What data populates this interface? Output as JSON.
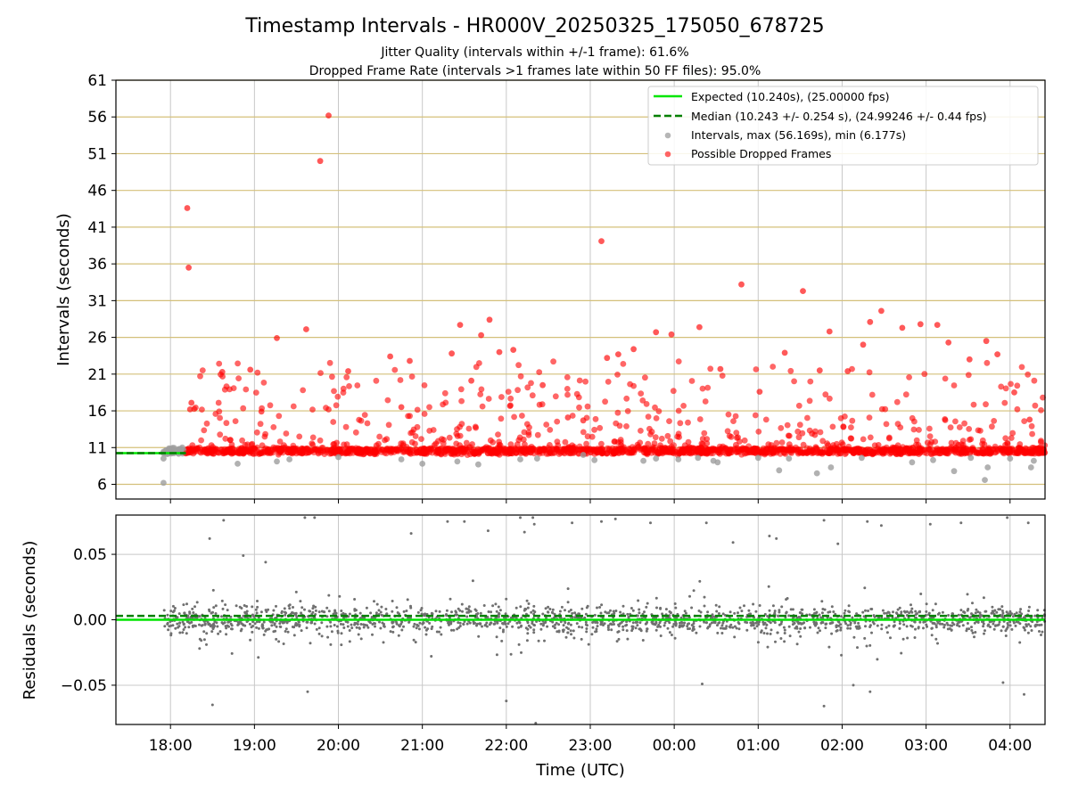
{
  "figure": {
    "title": "Timestamp Intervals - HR000V_20250325_175050_678725",
    "subtitle_1": "Jitter Quality (intervals within +/-1 frame): 61.6%",
    "subtitle_2": "Dropped Frame Rate (intervals >1 frames late within 50 FF files): 95.0%"
  },
  "colors": {
    "expected": "#00e600",
    "median": "#008000",
    "interval": "#9e9e9e",
    "dropped": "#ff0000",
    "residual": "#707070",
    "hgrid_top": "#d4c07a",
    "grid": "#c8c8c8"
  },
  "chart_data": [
    {
      "type": "scatter",
      "panel": "intervals",
      "title": "Timestamp Intervals - HR000V_20250325_175050_678725",
      "xlabel": "Time (UTC)",
      "ylabel": "Intervals (seconds)",
      "ylim": [
        4,
        61
      ],
      "xlim": [
        "17:21",
        "04:25"
      ],
      "x_ticks": [
        "18:00",
        "19:00",
        "20:00",
        "21:00",
        "22:00",
        "23:00",
        "00:00",
        "01:00",
        "02:00",
        "03:00",
        "04:00"
      ],
      "y_ticks": [
        6,
        11,
        16,
        21,
        26,
        31,
        36,
        41,
        46,
        51,
        56,
        61
      ],
      "grid": true,
      "legend_position": "top-right",
      "legend": [
        "Expected (10.240s), (25.00000 fps)",
        "Median (10.243 +/- 0.254 s), (24.99246 +/- 0.44 fps)",
        "Intervals, max (56.169s), min (6.177s)",
        "Possible Dropped Frames"
      ],
      "expected_interval_s": 10.24,
      "median_interval_s": 10.243,
      "series": [
        {
          "name": "Possible Dropped Frames",
          "x": [
            "18:12",
            "18:13",
            "18:14",
            "18:15",
            "18:37",
            "18:57",
            "19:05",
            "19:16",
            "19:37",
            "19:47",
            "19:53",
            "20:07",
            "20:37",
            "20:45",
            "20:51",
            "21:21",
            "21:27",
            "21:35",
            "21:42",
            "21:48",
            "21:55",
            "22:05",
            "22:26",
            "22:44",
            "22:55",
            "23:08",
            "23:12",
            "23:20",
            "23:31",
            "23:47",
            "23:58",
            "00:18",
            "00:33",
            "00:48",
            "01:01",
            "01:19",
            "01:32",
            "01:44",
            "01:51",
            "02:04",
            "02:15",
            "02:20",
            "02:28",
            "02:43",
            "02:56",
            "03:08",
            "03:16",
            "03:31",
            "03:43",
            "03:51",
            "04:03",
            "04:14"
          ],
          "y": [
            43.6,
            35.5,
            16.2,
            17.1,
            21.3,
            21.6,
            15.9,
            25.9,
            27.1,
            50.0,
            56.2,
            21.4,
            23.4,
            16.5,
            22.8,
            23.8,
            27.7,
            20.1,
            26.3,
            28.4,
            24.0,
            24.3,
            19.5,
            15.1,
            14.7,
            39.1,
            23.2,
            23.7,
            24.4,
            26.7,
            26.4,
            27.4,
            21.7,
            33.2,
            18.6,
            23.9,
            32.3,
            21.5,
            26.8,
            21.4,
            25.0,
            28.1,
            29.6,
            27.3,
            27.8,
            27.7,
            25.3,
            23.0,
            25.5,
            23.7,
            18.5,
            14.8
          ]
        },
        {
          "name": "Intervals, max (56.169s), min (6.177s)",
          "x": [
            "17:55",
            "17:55",
            "17:59",
            "18:06",
            "18:48",
            "19:16",
            "19:25",
            "20:00",
            "20:45",
            "21:00",
            "21:25",
            "21:40",
            "22:10",
            "22:22",
            "22:55",
            "23:03",
            "23:38",
            "23:47",
            "00:03",
            "00:17",
            "00:28",
            "00:31",
            "01:00",
            "01:15",
            "01:22",
            "01:42",
            "01:52",
            "02:14",
            "02:50",
            "03:05",
            "03:20",
            "03:32",
            "03:42",
            "03:44",
            "04:00",
            "04:15",
            "04:17"
          ],
          "y": [
            6.2,
            9.5,
            10.9,
            10.8,
            8.8,
            9.1,
            9.4,
            9.7,
            9.4,
            8.8,
            9.1,
            8.7,
            9.4,
            9.5,
            10.0,
            9.3,
            9.2,
            9.5,
            9.4,
            9.6,
            9.2,
            9.0,
            9.6,
            7.9,
            9.5,
            7.5,
            8.3,
            9.6,
            9.0,
            9.3,
            7.8,
            9.6,
            6.6,
            8.3,
            9.5,
            8.3,
            9.2
          ]
        },
        {
          "name": "Expected (10.240s), (25.00000 fps)",
          "x": [
            "17:21",
            "04:25"
          ],
          "y": [
            10.24,
            10.24
          ]
        },
        {
          "name": "Median (10.243 +/- 0.254 s), (24.99246 +/- 0.44 fps)",
          "x": [
            "17:21",
            "04:25"
          ],
          "y": [
            10.243,
            10.243
          ]
        }
      ]
    },
    {
      "type": "scatter",
      "panel": "residuals",
      "xlabel": "Time (UTC)",
      "ylabel": "Residuals (seconds)",
      "ylim": [
        -0.08,
        0.08
      ],
      "y_ticks": [
        -0.05,
        0.0,
        0.05
      ],
      "y_tick_labels": [
        "−0.05",
        "0.00",
        "0.05"
      ],
      "x_ticks": [
        "18:00",
        "19:00",
        "20:00",
        "21:00",
        "22:00",
        "23:00",
        "00:00",
        "01:00",
        "02:00",
        "03:00",
        "04:00"
      ],
      "grid": true,
      "series": [
        {
          "name": "",
          "x": [
            "18:28",
            "18:38",
            "18:52",
            "19:08",
            "19:36",
            "19:43",
            "20:52",
            "21:18",
            "21:30",
            "21:47",
            "22:10",
            "22:13",
            "22:19",
            "22:20",
            "22:47",
            "23:08",
            "23:18",
            "23:43",
            "00:23",
            "00:42",
            "01:08",
            "01:13",
            "01:47",
            "01:57",
            "02:18",
            "02:28",
            "03:03",
            "03:25",
            "03:58",
            "04:13",
            "18:30",
            "19:38",
            "22:00",
            "22:21",
            "00:20",
            "02:08",
            "02:20",
            "03:55",
            "04:10",
            "01:47"
          ],
          "y": [
            0.062,
            0.076,
            0.049,
            0.044,
            0.078,
            0.078,
            0.066,
            0.075,
            0.075,
            0.068,
            0.078,
            0.067,
            0.078,
            0.073,
            0.074,
            0.075,
            0.077,
            0.074,
            0.074,
            0.059,
            0.064,
            0.062,
            0.076,
            0.058,
            0.075,
            0.072,
            0.073,
            0.074,
            0.078,
            0.074,
            -0.065,
            -0.055,
            -0.062,
            -0.079,
            -0.049,
            -0.05,
            -0.055,
            -0.048,
            -0.057,
            -0.066
          ]
        }
      ]
    }
  ]
}
